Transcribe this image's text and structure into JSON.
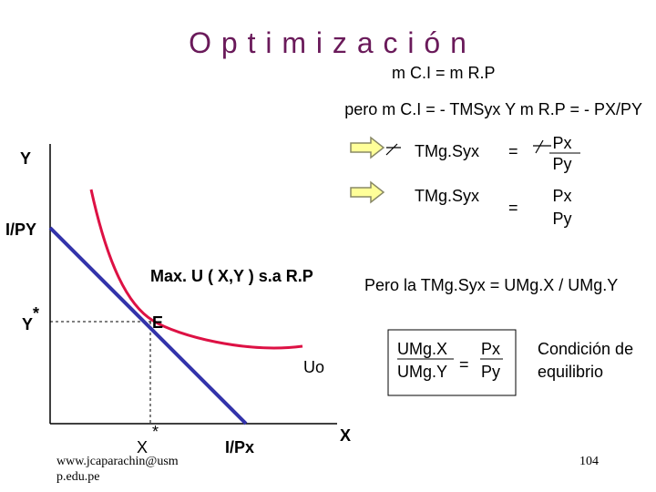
{
  "title": "O p t i m i z a c i ó n",
  "equation": "m  C.I  =  m  R.P",
  "condition": "pero  m  C.I  =  - TMSyx  Y  m  R.P  =  - PX/PY",
  "rows": [
    {
      "lhs": "TMg.Syx",
      "eq": "=",
      "num": "Px",
      "den": "Py"
    },
    {
      "lhs": "TMg.Syx",
      "eq": "=",
      "num": "Px",
      "den": "Py"
    }
  ],
  "graph": {
    "y_axis": "Y",
    "y_intercept": "I/PY",
    "y_star": "Y",
    "star": "*",
    "point": "E",
    "curve": "Uo",
    "x_star": "X",
    "x_intercept": "I/Px",
    "x_axis": "X"
  },
  "problem": "Max. U ( X,Y ) s.a  R.P",
  "statement": "Pero la TMg.Syx  =  UMg.X / UMg.Y",
  "box": {
    "num_left": "UMg.X",
    "den_left": "UMg.Y",
    "eq": "=",
    "num_right": "Px",
    "den_right": "Py"
  },
  "note": [
    "Condición de",
    "equilibrio"
  ],
  "footer": [
    "www.jcaparachin@usm",
    "p.edu.pe"
  ],
  "page": "104"
}
